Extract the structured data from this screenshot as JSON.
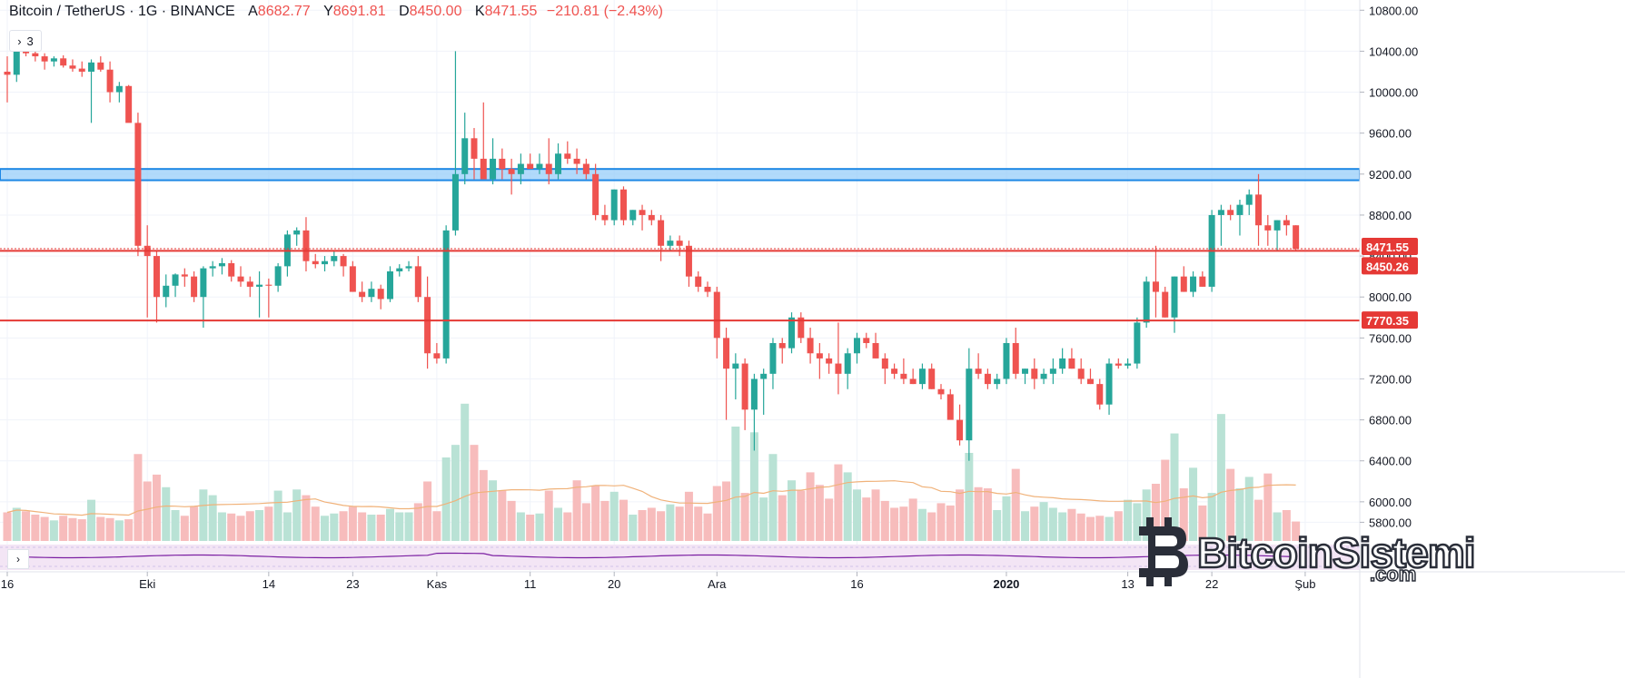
{
  "header": {
    "symbol": "Bitcoin / TetherUS · 1G · BINANCE",
    "open_label": "A",
    "open": "8682.77",
    "high_label": "Y",
    "high": "8691.81",
    "low_label": "D",
    "low": "8450.00",
    "close_label": "K",
    "close": "8471.55",
    "change": "−210.81 (−2.43%)"
  },
  "collapse_button": {
    "icon": "chevron-right-icon",
    "glyph": "›",
    "count": "3"
  },
  "indicator_toggle": {
    "icon": "chevron-right-icon",
    "glyph": "›"
  },
  "watermark": {
    "name": "BitcoinSistemi",
    "domain": ".com"
  },
  "colors": {
    "up": "#26a69a",
    "down": "#ef5350",
    "up_vol": "#b9e2d5",
    "down_vol": "#f7bcbc",
    "zone_fill": "#90caf9",
    "zone_line": "#1e88e5",
    "hline": "#e53935",
    "ma": "#f0b27a",
    "osc": "#7b1fa2",
    "osc_bg": "#f3e5f5"
  },
  "chart_data": {
    "type": "candlestick",
    "title": "Bitcoin / TetherUS · 1G · BINANCE",
    "ylim": [
      5600,
      10900
    ],
    "y_ticks": [
      5800,
      6000,
      6400,
      6800,
      7200,
      7600,
      8000,
      8400,
      8800,
      9200,
      9600,
      10000,
      10400,
      10800
    ],
    "y_tick_labels": [
      "5800.00",
      "6000.00",
      "6400.00",
      "6800.00",
      "7200.00",
      "7600.00",
      "8000.00",
      "8400.00",
      "8800.00",
      "9200.00",
      "9600.00",
      "10000.00",
      "10400.00",
      "10800.00"
    ],
    "x_labels": [
      {
        "label": "16",
        "day": 0
      },
      {
        "label": "Eki",
        "day": 15
      },
      {
        "label": "14",
        "day": 28
      },
      {
        "label": "23",
        "day": 37
      },
      {
        "label": "Kas",
        "day": 46
      },
      {
        "label": "11",
        "day": 56
      },
      {
        "label": "20",
        "day": 65
      },
      {
        "label": "Ara",
        "day": 76
      },
      {
        "label": "16",
        "day": 91
      },
      {
        "label": "2020",
        "day": 107
      },
      {
        "label": "13",
        "day": 120
      },
      {
        "label": "22",
        "day": 129
      },
      {
        "label": "Şub",
        "day": 139
      }
    ],
    "price_labels": [
      {
        "value": 8471.55,
        "text": "8471.55"
      },
      {
        "value": 8450.26,
        "text": "8450.26"
      },
      {
        "value": 7770.35,
        "text": "7770.35"
      }
    ],
    "zone": [
      9140,
      9250
    ],
    "hlines": [
      8450,
      7770
    ],
    "candles": [
      [
        10200,
        10350,
        9900,
        10170
      ],
      [
        10170,
        10500,
        10100,
        10420
      ],
      [
        10420,
        10500,
        10350,
        10380
      ],
      [
        10380,
        10420,
        10300,
        10350
      ],
      [
        10350,
        10380,
        10220,
        10300
      ],
      [
        10300,
        10350,
        10250,
        10330
      ],
      [
        10330,
        10360,
        10240,
        10260
      ],
      [
        10260,
        10320,
        10200,
        10230
      ],
      [
        10230,
        10300,
        10150,
        10200
      ],
      [
        10200,
        10320,
        9700,
        10290
      ],
      [
        10290,
        10350,
        10200,
        10220
      ],
      [
        10220,
        10300,
        9900,
        10000
      ],
      [
        10000,
        10100,
        9900,
        10060
      ],
      [
        10060,
        10070,
        9750,
        9700
      ],
      [
        9700,
        9800,
        8400,
        8500
      ],
      [
        8500,
        8700,
        7800,
        8400
      ],
      [
        8400,
        8450,
        7750,
        8000
      ],
      [
        8000,
        8220,
        7900,
        8110
      ],
      [
        8110,
        8230,
        8000,
        8220
      ],
      [
        8220,
        8280,
        8100,
        8200
      ],
      [
        8200,
        8250,
        7950,
        8000
      ],
      [
        8000,
        8300,
        7700,
        8280
      ],
      [
        8280,
        8350,
        8200,
        8300
      ],
      [
        8300,
        8380,
        8220,
        8330
      ],
      [
        8330,
        8360,
        8150,
        8200
      ],
      [
        8200,
        8300,
        8100,
        8150
      ],
      [
        8150,
        8200,
        8000,
        8100
      ],
      [
        8100,
        8250,
        7800,
        8120
      ],
      [
        8120,
        8180,
        7800,
        8110
      ],
      [
        8110,
        8330,
        8050,
        8300
      ],
      [
        8300,
        8650,
        8200,
        8610
      ],
      [
        8610,
        8680,
        8500,
        8650
      ],
      [
        8650,
        8780,
        8250,
        8350
      ],
      [
        8350,
        8420,
        8280,
        8320
      ],
      [
        8320,
        8400,
        8250,
        8350
      ],
      [
        8350,
        8450,
        8300,
        8400
      ],
      [
        8400,
        8420,
        8200,
        8300
      ],
      [
        8300,
        8350,
        8050,
        8050
      ],
      [
        8050,
        8150,
        7950,
        8000
      ],
      [
        8000,
        8150,
        7950,
        8080
      ],
      [
        8080,
        8120,
        7880,
        7980
      ],
      [
        7980,
        8300,
        7950,
        8250
      ],
      [
        8250,
        8320,
        8200,
        8280
      ],
      [
        8280,
        8350,
        8250,
        8300
      ],
      [
        8300,
        8400,
        7950,
        8000
      ],
      [
        8000,
        8200,
        7300,
        7450
      ],
      [
        7450,
        7550,
        7350,
        7400
      ],
      [
        7400,
        8700,
        7350,
        8650
      ],
      [
        8650,
        10400,
        8600,
        9200
      ],
      [
        9200,
        9800,
        9100,
        9550
      ],
      [
        9550,
        9650,
        9150,
        9350
      ],
      [
        9350,
        9900,
        9200,
        9150
      ],
      [
        9150,
        9550,
        9100,
        9350
      ],
      [
        9350,
        9450,
        9150,
        9250
      ],
      [
        9250,
        9350,
        9000,
        9200
      ],
      [
        9200,
        9400,
        9100,
        9300
      ],
      [
        9300,
        9400,
        9250,
        9250
      ],
      [
        9250,
        9400,
        9200,
        9300
      ],
      [
        9300,
        9550,
        9100,
        9200
      ],
      [
        9200,
        9500,
        9150,
        9400
      ],
      [
        9400,
        9520,
        9300,
        9350
      ],
      [
        9350,
        9450,
        9200,
        9300
      ],
      [
        9300,
        9350,
        9150,
        9200
      ],
      [
        9200,
        9300,
        8750,
        8800
      ],
      [
        8800,
        8900,
        8700,
        8750
      ],
      [
        8750,
        9050,
        8700,
        9050
      ],
      [
        9050,
        9080,
        8700,
        8750
      ],
      [
        8750,
        8850,
        8700,
        8850
      ],
      [
        8850,
        8900,
        8650,
        8800
      ],
      [
        8800,
        8850,
        8700,
        8750
      ],
      [
        8750,
        8800,
        8350,
        8500
      ],
      [
        8500,
        8600,
        8450,
        8550
      ],
      [
        8550,
        8600,
        8400,
        8500
      ],
      [
        8500,
        8550,
        8100,
        8200
      ],
      [
        8200,
        8250,
        8050,
        8100
      ],
      [
        8100,
        8150,
        8000,
        8050
      ],
      [
        8050,
        8100,
        7400,
        7600
      ],
      [
        7600,
        7700,
        6800,
        7300
      ],
      [
        7300,
        7450,
        7000,
        7350
      ],
      [
        7350,
        7400,
        6700,
        6900
      ],
      [
        6900,
        7250,
        6500,
        7200
      ],
      [
        7200,
        7300,
        6850,
        7250
      ],
      [
        7250,
        7600,
        7100,
        7550
      ],
      [
        7550,
        7600,
        7350,
        7500
      ],
      [
        7500,
        7850,
        7450,
        7800
      ],
      [
        7800,
        7850,
        7550,
        7600
      ],
      [
        7600,
        7700,
        7350,
        7450
      ],
      [
        7450,
        7550,
        7200,
        7400
      ],
      [
        7400,
        7450,
        7250,
        7350
      ],
      [
        7350,
        7750,
        7050,
        7250
      ],
      [
        7250,
        7500,
        7100,
        7450
      ],
      [
        7450,
        7650,
        7350,
        7600
      ],
      [
        7600,
        7650,
        7500,
        7550
      ],
      [
        7550,
        7650,
        7400,
        7400
      ],
      [
        7400,
        7450,
        7150,
        7300
      ],
      [
        7300,
        7350,
        7200,
        7250
      ],
      [
        7250,
        7400,
        7150,
        7200
      ],
      [
        7200,
        7300,
        7150,
        7150
      ],
      [
        7150,
        7350,
        7100,
        7300
      ],
      [
        7300,
        7350,
        7100,
        7100
      ],
      [
        7100,
        7150,
        7000,
        7050
      ],
      [
        7050,
        7100,
        6850,
        6800
      ],
      [
        6800,
        6950,
        6550,
        6600
      ],
      [
        6600,
        7500,
        6400,
        7300
      ],
      [
        7300,
        7450,
        7200,
        7250
      ],
      [
        7250,
        7300,
        7100,
        7150
      ],
      [
        7150,
        7250,
        7100,
        7200
      ],
      [
        7200,
        7600,
        7150,
        7550
      ],
      [
        7550,
        7700,
        7200,
        7250
      ],
      [
        7250,
        7300,
        7150,
        7300
      ],
      [
        7300,
        7400,
        7100,
        7200
      ],
      [
        7200,
        7300,
        7150,
        7250
      ],
      [
        7250,
        7400,
        7150,
        7300
      ],
      [
        7300,
        7500,
        7250,
        7400
      ],
      [
        7400,
        7500,
        7300,
        7300
      ],
      [
        7300,
        7400,
        7150,
        7200
      ],
      [
        7200,
        7300,
        7150,
        7150
      ],
      [
        7150,
        7200,
        6900,
        6950
      ],
      [
        6950,
        7400,
        6850,
        7350
      ],
      [
        7350,
        7400,
        7300,
        7330
      ],
      [
        7330,
        7400,
        7300,
        7350
      ],
      [
        7350,
        7800,
        7300,
        7750
      ],
      [
        7750,
        8200,
        7700,
        8150
      ],
      [
        8150,
        8500,
        7800,
        8050
      ],
      [
        8050,
        8100,
        7800,
        7800
      ],
      [
        7800,
        8200,
        7650,
        8200
      ],
      [
        8200,
        8300,
        8050,
        8050
      ],
      [
        8050,
        8250,
        8000,
        8200
      ],
      [
        8200,
        8250,
        8100,
        8100
      ],
      [
        8100,
        8850,
        8050,
        8800
      ],
      [
        8800,
        8900,
        8500,
        8850
      ],
      [
        8850,
        8900,
        8750,
        8800
      ],
      [
        8800,
        8950,
        8600,
        8900
      ],
      [
        8900,
        9050,
        8800,
        9000
      ],
      [
        9000,
        9200,
        8500,
        8700
      ],
      [
        8700,
        8800,
        8500,
        8650
      ],
      [
        8650,
        8750,
        8450,
        8750
      ],
      [
        8750,
        8800,
        8600,
        8700
      ],
      [
        8700,
        8700,
        8450,
        8470
      ]
    ],
    "volumes": [
      2.5,
      2.9,
      2.6,
      2.3,
      2.1,
      1.8,
      2.2,
      2.0,
      1.9,
      3.6,
      2.1,
      2.0,
      1.8,
      1.9,
      7.6,
      5.2,
      5.8,
      4.7,
      2.7,
      2.2,
      3.0,
      4.5,
      4.0,
      2.5,
      2.4,
      2.2,
      2.6,
      2.7,
      3.0,
      4.4,
      2.5,
      4.5,
      4.0,
      3.0,
      2.2,
      2.4,
      2.6,
      3.0,
      2.5,
      2.3,
      2.3,
      2.8,
      2.5,
      2.5,
      3.3,
      5.2,
      2.6,
      7.3,
      8.4,
      12.0,
      8.4,
      6.2,
      5.3,
      4.4,
      3.5,
      2.5,
      2.3,
      2.4,
      4.4,
      2.9,
      2.5,
      5.3,
      3.3,
      4.8,
      3.5,
      4.3,
      3.6,
      2.3,
      2.7,
      2.9,
      2.6,
      3.2,
      3.0,
      4.3,
      3.0,
      2.4,
      4.8,
      5.2,
      10.0,
      4.2,
      9.5,
      3.8,
      7.6,
      4.0,
      5.3,
      4.4,
      6.0,
      4.9,
      3.7,
      6.7,
      6.0,
      4.5,
      3.8,
      4.5,
      3.5,
      2.9,
      3.0,
      3.7,
      2.8,
      2.5,
      3.3,
      3.1,
      4.5,
      7.7,
      4.7,
      4.6,
      2.7,
      3.9,
      6.3,
      2.6,
      3.0,
      3.4,
      2.9,
      2.5,
      2.8,
      2.4,
      2.1,
      2.2,
      2.1,
      2.6,
      3.6,
      3.3,
      4.5,
      5.0,
      7.1,
      9.4,
      4.6,
      6.4,
      3.1,
      4.2,
      11.1,
      6.3,
      4.6,
      5.6,
      3.6,
      5.9,
      2.5,
      2.7,
      1.7
    ],
    "xlabel": "",
    "ylabel": ""
  }
}
